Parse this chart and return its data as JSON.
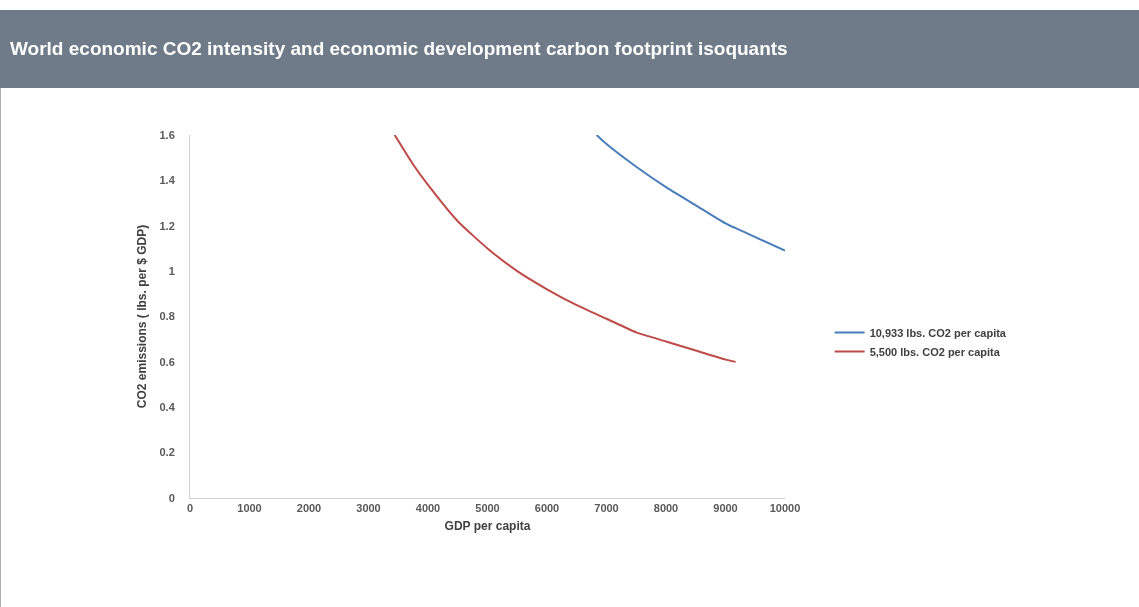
{
  "chart_data": {
    "type": "line",
    "title": "World economic CO2 intensity and economic development carbon footprint isoquants",
    "xlabel": "GDP per capita",
    "ylabel": "CO2 emissions ( lbs. per $ GDP)",
    "series": [
      {
        "name": "10,933 lbs. CO2 per capita",
        "color": "#4a7ebb",
        "x": [
          6833,
          7000,
          7500,
          8000,
          8500,
          9000,
          9500,
          10000
        ],
        "values": [
          1.6,
          1.56,
          1.46,
          1.37,
          1.29,
          1.21,
          1.15,
          1.09
        ]
      },
      {
        "name": "5,500 lbs. CO2 per capita",
        "color": "#be4b48",
        "x": [
          3440,
          3750,
          4000,
          4500,
          5000,
          5500,
          6000,
          6500,
          7000,
          7500,
          8000,
          8500,
          9000,
          9170
        ],
        "values": [
          1.6,
          1.47,
          1.38,
          1.22,
          1.1,
          1.0,
          0.92,
          0.85,
          0.79,
          0.73,
          0.69,
          0.65,
          0.61,
          0.6
        ]
      }
    ],
    "xlim": [
      0,
      10000
    ],
    "xticks": [
      0,
      1000,
      2000,
      3000,
      4000,
      5000,
      6000,
      7000,
      8000,
      9000,
      10000
    ],
    "ylim": [
      0,
      1.6
    ],
    "yticks": [
      0,
      0.2,
      0.4,
      0.6,
      0.8,
      1,
      1.2,
      1.4,
      1.6
    ],
    "grid": false,
    "legend": "right",
    "marker": "none",
    "line_style": "solid"
  }
}
